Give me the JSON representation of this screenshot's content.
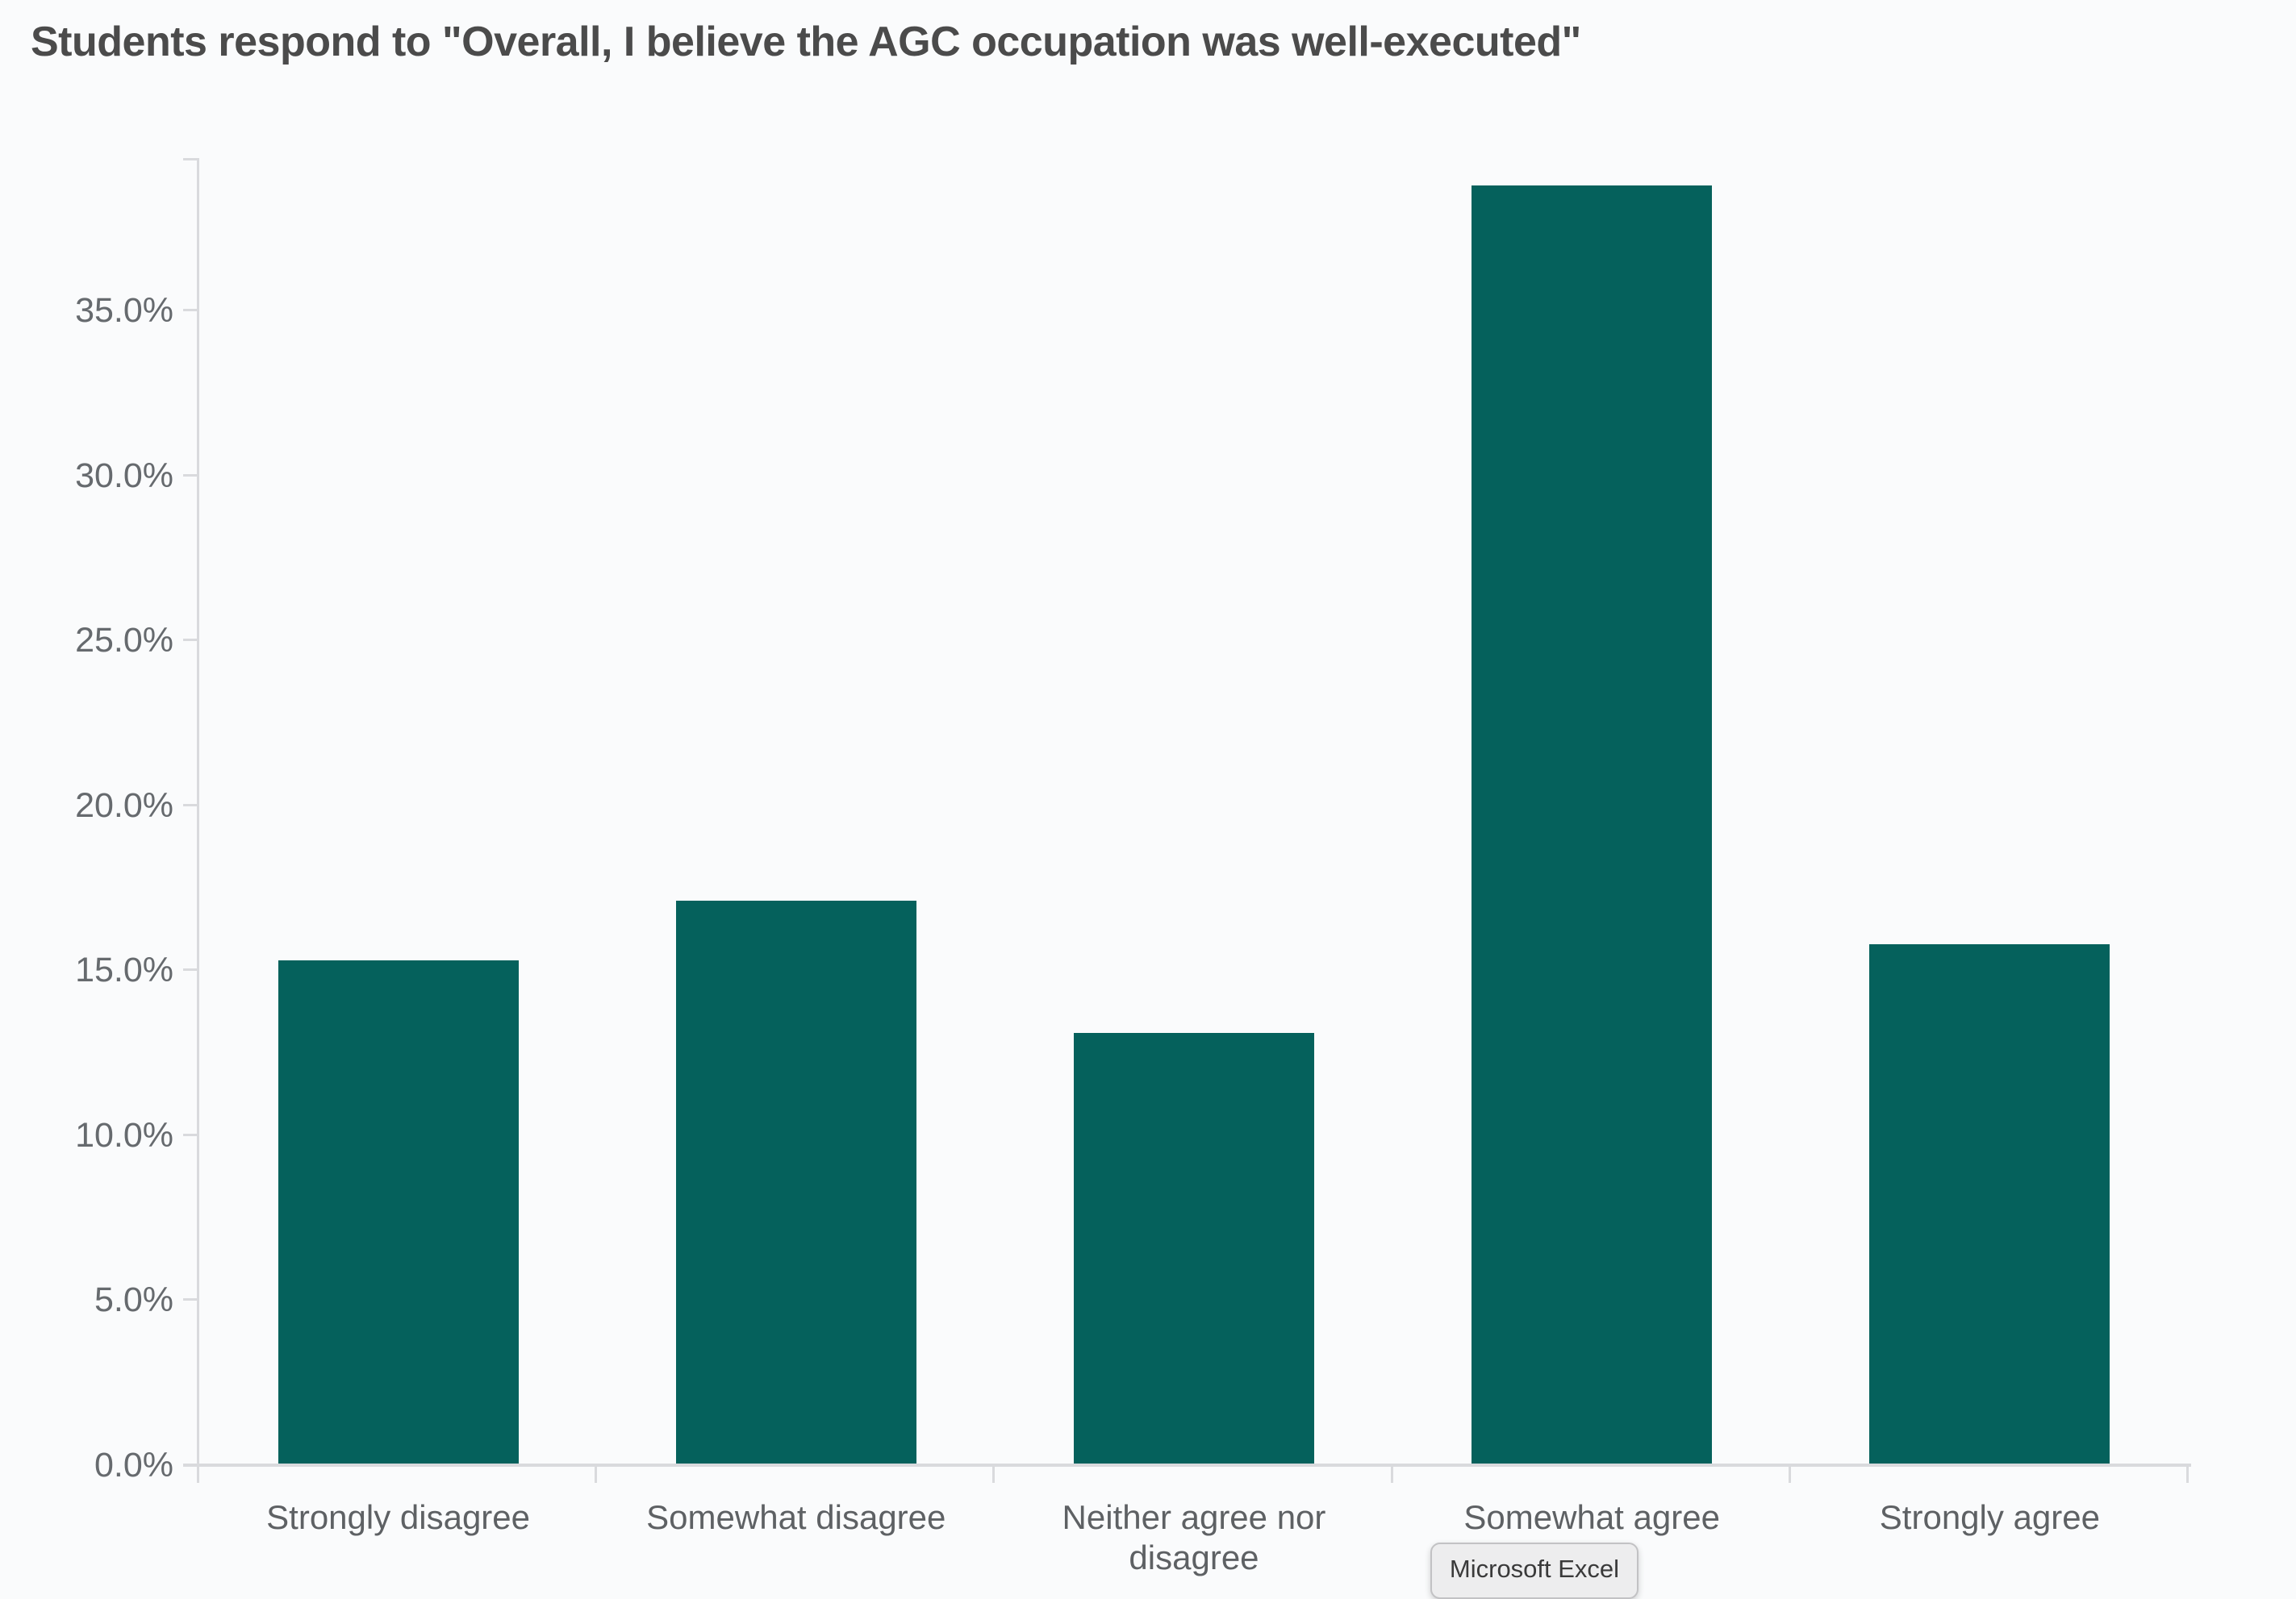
{
  "tooltip": {
    "label": "Microsoft Excel"
  },
  "chart_data": {
    "type": "bar",
    "title": "Students respond to \"Overall, I believe the AGC occupation was well-executed\"",
    "categories": [
      "Strongly disagree",
      "Somewhat disagree",
      "Neither agree nor disagree",
      "Somewhat agree",
      "Strongly agree"
    ],
    "values": [
      15.3,
      17.1,
      13.1,
      38.8,
      15.8
    ],
    "unit": "%",
    "xlabel": "",
    "ylabel": "",
    "ylim": [
      0,
      39.6
    ],
    "yticks": [
      0,
      5,
      10,
      15,
      20,
      25,
      30,
      35
    ],
    "ytick_labels": [
      "0.0%",
      "5.0%",
      "10.0%",
      "15.0%",
      "20.0%",
      "25.0%",
      "30.0%",
      "35.0%"
    ],
    "grid": false,
    "legend": false,
    "bar_color": "#05615c",
    "background_color": "#fafbfc",
    "axis_color": "#d9dadd",
    "tick_label_color": "#666a6e",
    "category_label_color": "#5e6164",
    "title_color": "#4b4b4b"
  }
}
